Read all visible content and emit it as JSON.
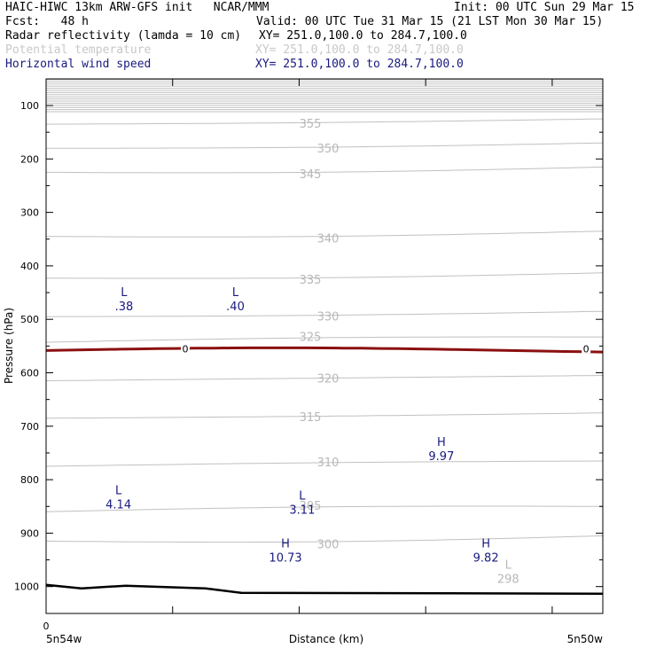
{
  "header": {
    "model": "HAIC-HIWC 13km ARW-GFS init   NCAR/MMM",
    "init": "Init: 00 UTC Sun 29 Mar 15",
    "fcst": "Fcst:   48 h",
    "valid": "Valid: 00 UTC Tue 31 Mar 15 (21 LST Mon 30 Mar 15)",
    "field1_name": "Radar reflectivity (lamda = 10 cm)",
    "field1_xy": "XY= 251.0,100.0 to 284.7,100.0",
    "field2_name": "Potential temperature",
    "field2_xy": "XY= 251.0,100.0 to 284.7,100.0",
    "field3_name": "Horizontal wind speed",
    "field3_xy": "XY= 251.0,100.0 to 284.7,100.0"
  },
  "colors": {
    "theta": "#c0c0c0",
    "freezing": "#8b1010",
    "ground": "#000000",
    "wind_labels": "#1a1a80"
  },
  "chart_data": {
    "type": "line",
    "ylabel": "Pressure (hPa)",
    "xlabel": "Distance (km)",
    "y_ticks": [
      "100",
      "200",
      "300",
      "400",
      "500",
      "600",
      "700",
      "800",
      "900",
      "1000"
    ],
    "x_tick_zero": "0",
    "x_left_label": "5n54w",
    "x_right_label": "5n50w",
    "ylim": [
      1050,
      50
    ],
    "theta_contours": [
      {
        "label": "355",
        "p": 130,
        "lp": 133
      },
      {
        "label": "350",
        "p": 175,
        "lp": 180
      },
      {
        "label": "345",
        "p": 220,
        "lp": 228
      },
      {
        "label": "340",
        "p": 340,
        "lp": 348
      },
      {
        "label": "335",
        "p": 418,
        "lp": 425
      },
      {
        "label": "330",
        "p": 490,
        "lp": 494
      },
      {
        "label": "325",
        "p": 538,
        "lp": 532
      },
      {
        "label": "320",
        "p": 610,
        "lp": 610
      },
      {
        "label": "315",
        "p": 680,
        "lp": 682
      },
      {
        "label": "310",
        "p": 770,
        "lp": 767
      },
      {
        "label": "305",
        "p": 855,
        "lp": 848
      },
      {
        "label": "300",
        "p": 910,
        "lp": 920
      }
    ],
    "freezing_level": {
      "label": "0",
      "p": 555
    },
    "wind_extrema": [
      {
        "type": "L",
        "value": ".38",
        "x": 0.14,
        "p": 480
      },
      {
        "type": "L",
        "value": ".40",
        "x": 0.34,
        "p": 480
      },
      {
        "type": "H",
        "value": "9.97",
        "x": 0.71,
        "p": 760
      },
      {
        "type": "L",
        "value": "4.14",
        "x": 0.13,
        "p": 850
      },
      {
        "type": "L",
        "value": "3.11",
        "x": 0.46,
        "p": 860
      },
      {
        "type": "H",
        "value": "10.73",
        "x": 0.43,
        "p": 950
      },
      {
        "type": "H",
        "value": "9.82",
        "x": 0.79,
        "p": 950
      }
    ],
    "theta_minimum": {
      "type": "L",
      "value": "298",
      "x": 0.83,
      "p": 990
    }
  }
}
